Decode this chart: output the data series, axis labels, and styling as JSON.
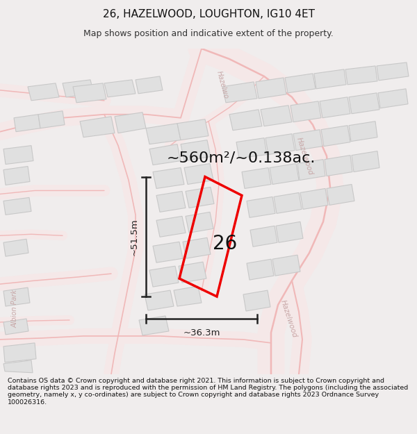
{
  "title": "26, HAZELWOOD, LOUGHTON, IG10 4ET",
  "subtitle": "Map shows position and indicative extent of the property.",
  "area_text": "~560m²/~0.138ac.",
  "property_number": "26",
  "dim_height": "~51.5m",
  "dim_width": "~36.3m",
  "footer": "Contains OS data © Crown copyright and database right 2021. This information is subject to Crown copyright and database rights 2023 and is reproduced with the permission of HM Land Registry. The polygons (including the associated geometry, namely x, y co-ordinates) are subject to Crown copyright and database rights 2023 Ordnance Survey 100026316.",
  "bg_color": "#f0eded",
  "map_bg": "#ffffff",
  "road_color": "#f0b8b8",
  "road_outline": "#e89090",
  "building_color": "#e0e0e0",
  "building_edge": "#c8c8c8",
  "property_color": "#ee0000",
  "dim_color": "#222222",
  "street_label_color": "#c8a8a8",
  "title_fontsize": 11,
  "subtitle_fontsize": 9,
  "footer_fontsize": 6.8,
  "area_fontsize": 16,
  "number_fontsize": 20,
  "dim_fontsize": 9.5
}
